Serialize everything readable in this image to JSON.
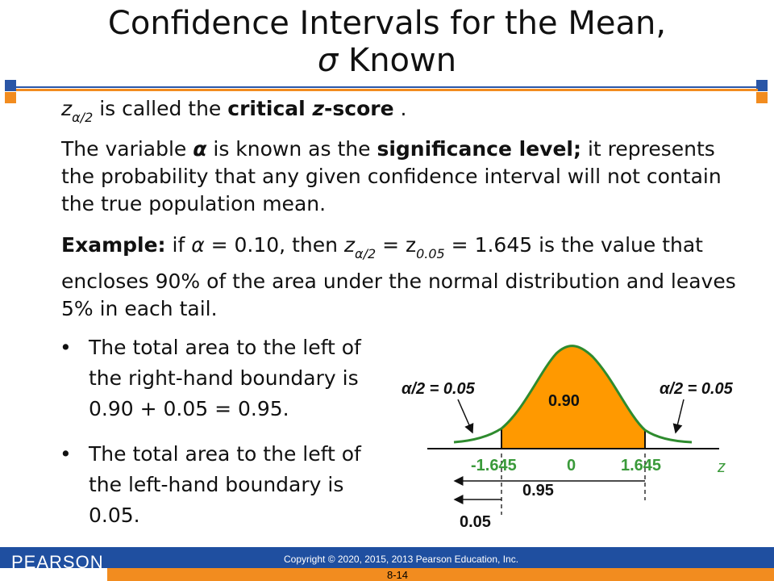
{
  "title": {
    "line1": "Confidence Intervals for the Mean,",
    "line2_symbol": "σ",
    "line2_text": " Known"
  },
  "p1": {
    "z": "z",
    "sub": "α/2",
    "before_bold": " is called the ",
    "bold": "critical ",
    "bold_italic": "z",
    "bold_after": "-score",
    "after": " ."
  },
  "p2": {
    "t1": "The variable ",
    "alpha": "α",
    "t2": " is known as the ",
    "bold": "significance level;",
    "t3": " it represents the probability that any given confidence interval will not contain the true population mean."
  },
  "p3": {
    "bold": "Example:",
    "t1": "  if ",
    "alpha": "α",
    "t2": " = 0.10, then  ",
    "z": "z",
    "sub1": "α/2",
    "t3": " = z",
    "sub2": "0.05",
    "t4": " = 1.645  is the value that encloses 90% of the area under the normal distribution and leaves 5% in each tail."
  },
  "bullets": [
    "The total area to the left of the right-hand boundary is 0.90 + 0.05 = 0.95.",
    "The total area to the left of the left-hand boundary is 0.05."
  ],
  "bullet_char": "•",
  "figure": {
    "left_tail_label": "α/2 = 0.05",
    "right_tail_label": "α/2 = 0.05",
    "center_label": "0.90",
    "ticks": [
      "-1.645",
      "0",
      "1.645"
    ],
    "axis_label": "z",
    "arrow_095_label": "0.95",
    "arrow_005_label": "0.05",
    "colors": {
      "fill": "#ff9900",
      "curve": "#2e8b2e",
      "tick_text": "#3a9a3a"
    }
  },
  "footer": {
    "brand": "PEARSON",
    "copyright": "Copyright © 2020, 2015, 2013 Pearson Education, Inc.",
    "page": "8-14",
    "colors": {
      "blue": "#1f4fa0",
      "orange": "#f28c1f"
    }
  }
}
